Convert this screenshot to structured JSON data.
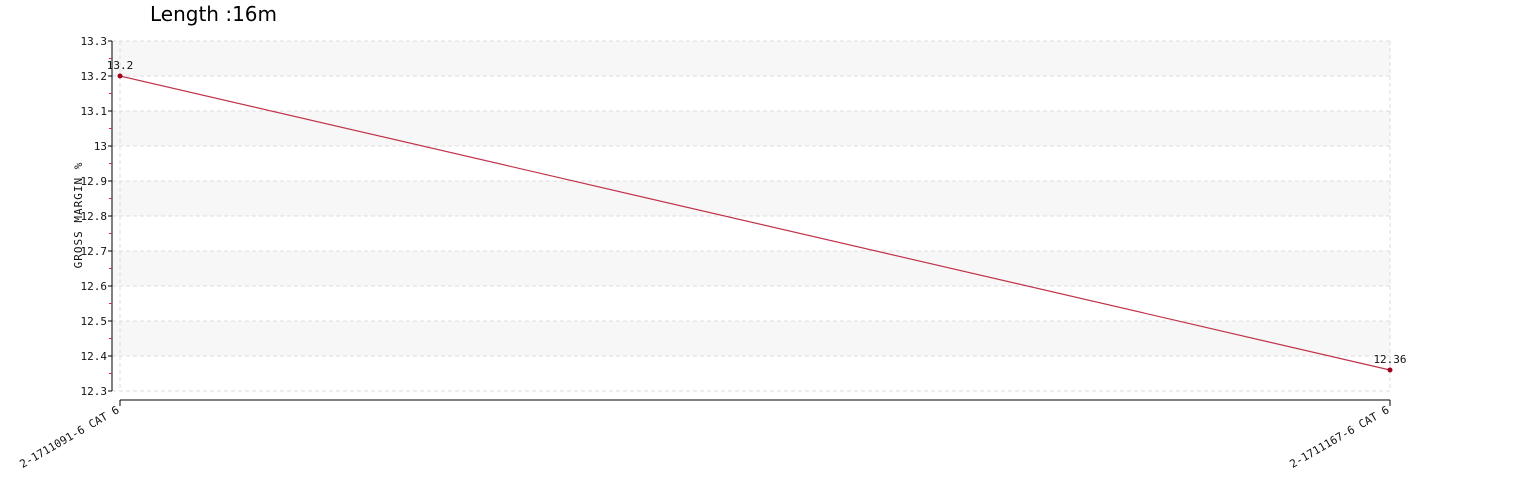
{
  "chart_data": {
    "type": "line",
    "title": "Length :16m",
    "ylabel": "GROSS MARGIN %",
    "xlabel": "",
    "categories": [
      "2-1711091-6 CAT 6",
      "2-1711167-6 CAT 6"
    ],
    "series": [
      {
        "values": [
          13.2,
          12.36
        ],
        "data_labels": [
          "13.2",
          "12.36"
        ],
        "color": "#c0324a",
        "marker_color": "#a3001c"
      }
    ],
    "ylim": [
      12.3,
      13.3
    ],
    "yticks": [
      "12.3",
      "12.4",
      "12.5",
      "12.6",
      "12.7",
      "12.8",
      "12.9",
      "13",
      "13.1",
      "13.2",
      "13.3"
    ],
    "grid": true,
    "legend": "none"
  }
}
